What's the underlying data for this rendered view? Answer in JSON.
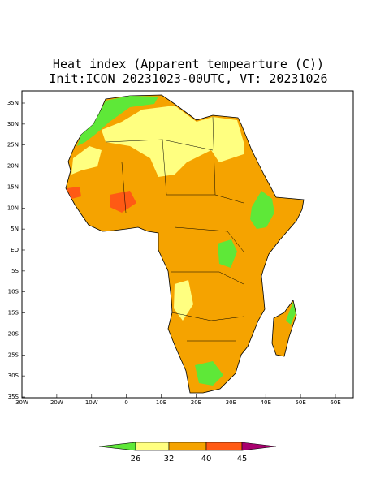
{
  "title": "Heat index (Apparent tempearture (C))",
  "subtitle": "Init:ICON 20231023-00UTC, VT: 20231026",
  "map": {
    "lat_ticks": [
      "35N",
      "30N",
      "25N",
      "20N",
      "15N",
      "10N",
      "5N",
      "EQ",
      "5S",
      "10S",
      "15S",
      "20S",
      "25S",
      "30S",
      "35S"
    ],
    "lon_ticks": [
      "30W",
      "20W",
      "10W",
      "0",
      "10E",
      "20E",
      "30E",
      "40E",
      "50E",
      "60E"
    ]
  },
  "colorbar": {
    "levels": [
      26,
      32,
      40,
      45
    ],
    "colors": [
      "#5ee838",
      "#ffff80",
      "#f5a300",
      "#ff5a14",
      "#a8006e"
    ]
  }
}
